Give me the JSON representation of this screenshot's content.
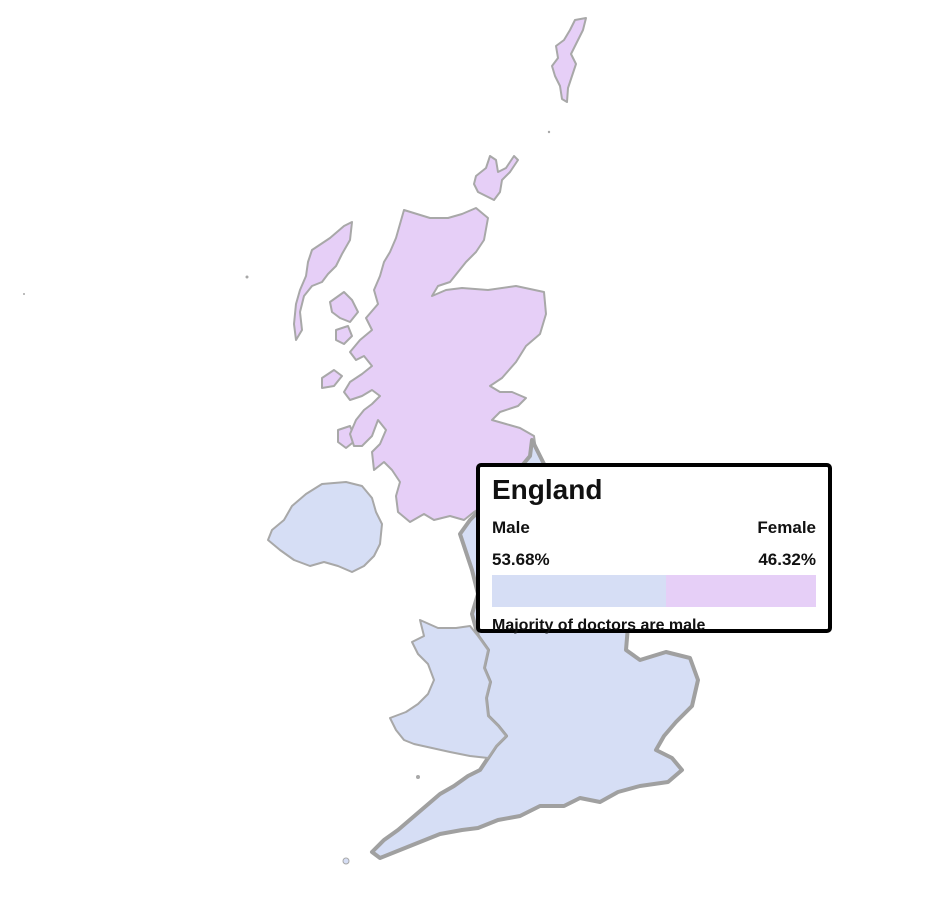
{
  "colors": {
    "male_majority": "#d6def5",
    "female_majority": "#e6cff7",
    "border": "#a8a8a8"
  },
  "regions": [
    {
      "id": "scotland",
      "name": "Scotland",
      "majority": "female"
    },
    {
      "id": "northern-ireland",
      "name": "Northern Ireland",
      "majority": "male"
    },
    {
      "id": "wales",
      "name": "Wales",
      "majority": "male"
    },
    {
      "id": "england",
      "name": "England",
      "majority": "male"
    }
  ],
  "tooltip": {
    "title": "England",
    "male_label": "Male",
    "female_label": "Female",
    "male_value": "53.68%",
    "female_value": "46.32%",
    "male_share": 53.68,
    "female_share": 46.32,
    "note": "Majority of doctors are male"
  }
}
